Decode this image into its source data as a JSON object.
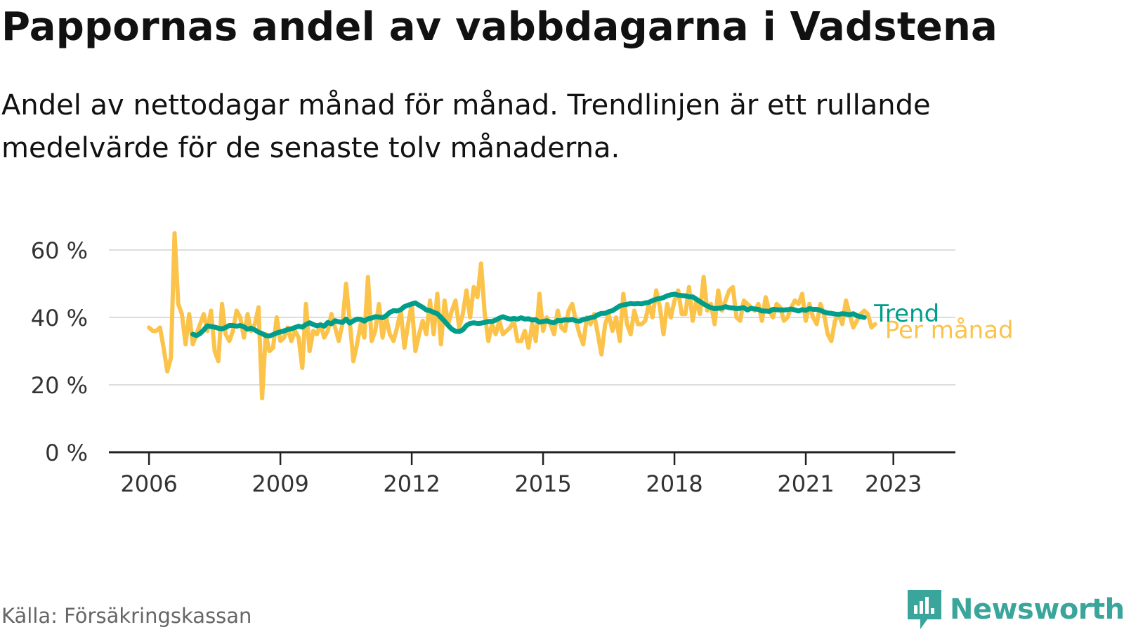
{
  "title": "Pappornas andel av vabbdagarna i Vadstena",
  "subtitle": "Andel av nettodagar månad för månad. Trendlinjen är ett rullande medelvärde för de senaste tolv månaderna.",
  "source": "Källa: Försäkringskassan",
  "brand": "Newsworthy",
  "colors": {
    "monthly": "#fbc34a",
    "trend": "#009e8a",
    "grid": "#dddddd",
    "axis": "#222222"
  },
  "chart_data": {
    "type": "line",
    "title": "Pappornas andel av vabbdagarna i Vadstena",
    "subtitle": "Andel av nettodagar månad för månad. Trendlinjen är ett rullande medelvärde för de senaste tolv månaderna.",
    "y_unit": "%",
    "ylim": [
      0,
      65
    ],
    "y_ticks": [
      {
        "value": 0,
        "label": "0 %"
      },
      {
        "value": 20,
        "label": "20 %"
      },
      {
        "value": 40,
        "label": "40 %"
      },
      {
        "value": 60,
        "label": "60 %"
      }
    ],
    "x_range": [
      "2005-02",
      "2024-06"
    ],
    "x_ticks": [
      {
        "value": "2006-01",
        "label": "2006"
      },
      {
        "value": "2009-01",
        "label": "2009"
      },
      {
        "value": "2012-01",
        "label": "2012"
      },
      {
        "value": "2015-01",
        "label": "2015"
      },
      {
        "value": "2018-01",
        "label": "2018"
      },
      {
        "value": "2021-01",
        "label": "2021"
      },
      {
        "value": "2023-01",
        "label": "2023"
      }
    ],
    "grid": true,
    "legend": "direct labels at line ends (right)",
    "series": [
      {
        "name": "Per månad",
        "start": "2006-01",
        "values": [
          37,
          36,
          36,
          37,
          31,
          24,
          28,
          65,
          44,
          41,
          32,
          41,
          32,
          35,
          38,
          41,
          36,
          42,
          30,
          27,
          44,
          35,
          33,
          36,
          42,
          40,
          34,
          41,
          36,
          38,
          43,
          16,
          35,
          30,
          31,
          40,
          33,
          34,
          37,
          33,
          36,
          34,
          25,
          44,
          30,
          36,
          35,
          38,
          34,
          36,
          41,
          37,
          33,
          38,
          50,
          39,
          27,
          32,
          38,
          34,
          52,
          33,
          36,
          44,
          34,
          40,
          35,
          33,
          37,
          42,
          31,
          38,
          44,
          30,
          35,
          39,
          35,
          45,
          35,
          47,
          32,
          45,
          38,
          42,
          45,
          37,
          41,
          48,
          40,
          49,
          46,
          56,
          41,
          33,
          38,
          35,
          39,
          35,
          36,
          37,
          39,
          33,
          33,
          36,
          31,
          38,
          33,
          47,
          36,
          40,
          38,
          35,
          42,
          37,
          36,
          42,
          44,
          39,
          35,
          32,
          40,
          38,
          41,
          35,
          29,
          38,
          41,
          36,
          40,
          33,
          47,
          38,
          35,
          42,
          38,
          38,
          39,
          44,
          40,
          48,
          43,
          35,
          44,
          40,
          45,
          48,
          41,
          41,
          49,
          39,
          45,
          41,
          52,
          42,
          44,
          38,
          48,
          42,
          45,
          48,
          49,
          40,
          39,
          45,
          44,
          43,
          42,
          44,
          39,
          46,
          42,
          40,
          44,
          43,
          39,
          40,
          43,
          45,
          44,
          47,
          39,
          44,
          40,
          38,
          44,
          41,
          35,
          33,
          39,
          41,
          38,
          45,
          41,
          37,
          39,
          41,
          42,
          41,
          37,
          38
        ]
      },
      {
        "name": "Trend",
        "start": "2007-01",
        "values": [
          35,
          34.6,
          35.2,
          36.3,
          37.5,
          37.3,
          37.1,
          36.8,
          36.6,
          37,
          37.6,
          37.6,
          37.4,
          37.6,
          37.2,
          36.5,
          36.8,
          36.3,
          35.6,
          35.2,
          34.6,
          34.5,
          34.9,
          35.4,
          35.7,
          36,
          36.4,
          36.6,
          37,
          37.4,
          37.1,
          37.9,
          38.4,
          37.9,
          37.5,
          37.8,
          37.4,
          38.5,
          38.1,
          39,
          38.7,
          38.5,
          39.5,
          38.3,
          39,
          39.5,
          39.4,
          38.9,
          39.6,
          39.8,
          40.2,
          40.1,
          39.9,
          40.5,
          41.5,
          42,
          41.9,
          42.3,
          43.2,
          43.6,
          44,
          44.3,
          43.6,
          43,
          42.2,
          42,
          41.5,
          41.1,
          40,
          38.9,
          37.6,
          36.5,
          35.9,
          35.8,
          36.3,
          37.6,
          38.2,
          38.4,
          38.2,
          38.3,
          38.5,
          38.8,
          38.8,
          39.2,
          39.8,
          40.2,
          39.8,
          39.5,
          39.7,
          39.5,
          39.9,
          39.5,
          39.6,
          39.2,
          39.3,
          38.6,
          38.8,
          39,
          38.6,
          38.4,
          39.1,
          39,
          39.3,
          39.2,
          39.4,
          39,
          38.9,
          39.4,
          39.6,
          39.9,
          40.1,
          40.8,
          41.2,
          41.2,
          41.7,
          42,
          42.7,
          43.4,
          43.7,
          43.9,
          44.1,
          44,
          44.1,
          44,
          44.3,
          44.5,
          45,
          45.4,
          45.6,
          45.9,
          46.4,
          46.7,
          46.9,
          46.6,
          46.5,
          46.4,
          46.1,
          46.1,
          45.4,
          44.7,
          44,
          43.4,
          42.9,
          42.6,
          42.7,
          42.8,
          43.2,
          42.9,
          42.8,
          42.6,
          42.7,
          42.9,
          42.2,
          42.7,
          42.5,
          42.4,
          41.9,
          41.9,
          41.8,
          42.4,
          42.3,
          42.2,
          42.2,
          42.3,
          42.5,
          42.2,
          41.9,
          42.3,
          42.1,
          42.6,
          42.4,
          42.4,
          42.1,
          41.6,
          41.3,
          41.2,
          41,
          40.9,
          41.1,
          41,
          40.8,
          41.1,
          40.5,
          40.2,
          40
        ]
      }
    ]
  }
}
